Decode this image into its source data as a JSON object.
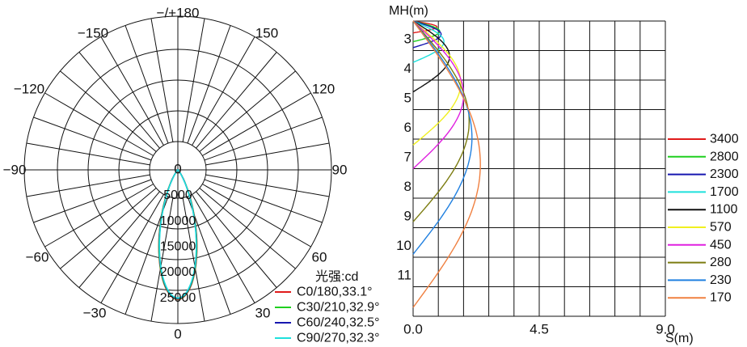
{
  "chart_data": [
    {
      "type": "polar",
      "angle_labels": [
        "−/+180",
        "−150",
        "150",
        "−120",
        "120",
        "−90",
        "90",
        "−60",
        "60",
        "−30",
        "30",
        "0",
        "0"
      ],
      "radial_labels": [
        "5000",
        "10000",
        "15000",
        "20000",
        "25000"
      ],
      "rlim": [
        0,
        30000
      ],
      "legend_title": "光强:cd",
      "series": [
        {
          "name": "C0/180,33.1°",
          "color": "#e01b1b",
          "beam_angle": 33.1,
          "peak": 25300
        },
        {
          "name": "C30/210,32.9°",
          "color": "#1fcf1f",
          "beam_angle": 32.9,
          "peak": 25200
        },
        {
          "name": "C60/240,32.5°",
          "color": "#1717b0",
          "beam_angle": 32.5,
          "peak": 25100
        },
        {
          "name": "C90/270,32.3°",
          "color": "#1ee0dc",
          "beam_angle": 32.3,
          "peak": 25000
        }
      ]
    },
    {
      "type": "line",
      "xlabel": "S(m)",
      "ylabel": "MH(m)",
      "xlim": [
        0,
        9
      ],
      "ylim": [
        2.2,
        12.2
      ],
      "x_ticks": [
        "0.0",
        "4.5",
        "9.0"
      ],
      "y_ticks": [
        "3",
        "4",
        "5",
        "6",
        "7",
        "8",
        "9",
        "10",
        "11"
      ],
      "y_inverted": true,
      "series": [
        {
          "name": "3400",
          "color": "#e01b1b",
          "max_mh": 2.6,
          "max_s": 0.85
        },
        {
          "name": "2800",
          "color": "#1fcf1f",
          "max_mh": 2.9,
          "max_s": 0.95
        },
        {
          "name": "2300",
          "color": "#1717b0",
          "max_mh": 3.1,
          "max_s": 1.0
        },
        {
          "name": "1700",
          "color": "#1ee0dc",
          "max_mh": 3.6,
          "max_s": 1.1
        },
        {
          "name": "1100",
          "color": "#111111",
          "max_mh": 4.6,
          "max_s": 1.3
        },
        {
          "name": "570",
          "color": "#f0f020",
          "max_mh": 6.4,
          "max_s": 1.7
        },
        {
          "name": "450",
          "color": "#e020e0",
          "max_mh": 7.2,
          "max_s": 1.8
        },
        {
          "name": "280",
          "color": "#7c7c10",
          "max_mh": 9.0,
          "max_s": 2.0
        },
        {
          "name": "230",
          "color": "#2080e0",
          "max_mh": 10.1,
          "max_s": 2.1
        },
        {
          "name": "170",
          "color": "#f08040",
          "max_mh": 11.9,
          "max_s": 2.4
        }
      ]
    }
  ]
}
